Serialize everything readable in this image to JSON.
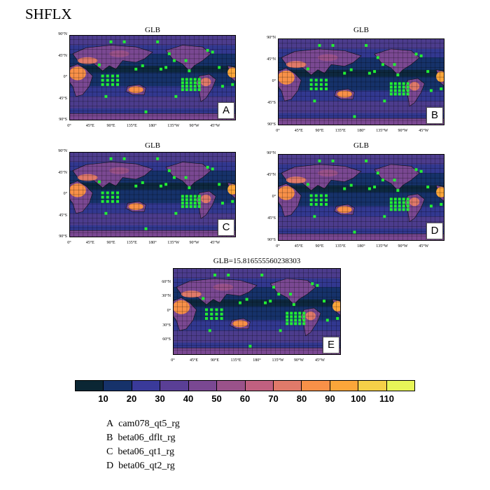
{
  "title": "SHFLX",
  "panels": [
    {
      "id": "A",
      "title": "GLB",
      "letter": "A"
    },
    {
      "id": "B",
      "title": "GLB",
      "letter": "B"
    },
    {
      "id": "C",
      "title": "GLB",
      "letter": "C"
    },
    {
      "id": "D",
      "title": "GLB",
      "letter": "D"
    },
    {
      "id": "E",
      "title": "GLB=15.816555560238303",
      "letter": "E"
    }
  ],
  "lat_labels_small": [
    "90°N",
    "45°N",
    "0°",
    "45°S",
    "90°S"
  ],
  "lat_labels_big": [
    "60°N",
    "30°N",
    "0°",
    "30°S",
    "60°S"
  ],
  "lon_labels": [
    "0°",
    "45°E",
    "90°E",
    "135°E",
    "180°",
    "135°W",
    "90°W",
    "45°W"
  ],
  "colorbar": {
    "colors": [
      "#0b2634",
      "#16326a",
      "#3a3a9a",
      "#5a3f96",
      "#7a4892",
      "#9a528a",
      "#c06080",
      "#e07a6a",
      "#f89048",
      "#fba63a",
      "#f6d048",
      "#e8f658"
    ],
    "labels": [
      "10",
      "20",
      "30",
      "40",
      "50",
      "60",
      "70",
      "80",
      "90",
      "100",
      "110"
    ]
  },
  "legend": [
    {
      "letter": "A",
      "name": "cam078_qt5_rg"
    },
    {
      "letter": "B",
      "name": "beta06_dflt_rg"
    },
    {
      "letter": "C",
      "name": "beta06_qt1_rg"
    },
    {
      "letter": "D",
      "name": "beta06_qt2_rg"
    }
  ]
}
